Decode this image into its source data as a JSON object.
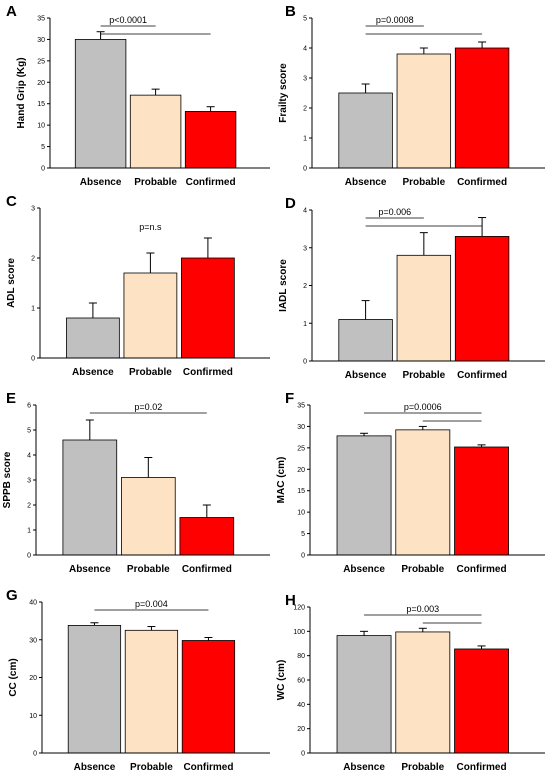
{
  "categories": [
    "Absence",
    "Probable",
    "Confirmed"
  ],
  "colors": {
    "Absence": "#c0c0c0",
    "Probable": "#fde3c4",
    "Confirmed": "#ff0000"
  },
  "chart_data": [
    {
      "type": "bar",
      "panel": "A",
      "ylabel": "Hand Grip (Kg)",
      "ylim": [
        0,
        35
      ],
      "yticks": [
        0,
        5,
        10,
        15,
        20,
        25,
        30,
        35
      ],
      "categories": [
        "Absence",
        "Probable",
        "Confirmed"
      ],
      "values": [
        30,
        17,
        13.2
      ],
      "errors": [
        1.8,
        1.4,
        1.1
      ],
      "pvalues": [
        {
          "label": "p<0.0001",
          "brackets": [
            [
              0,
              1
            ],
            [
              0,
              2
            ]
          ]
        }
      ]
    },
    {
      "type": "bar",
      "panel": "B",
      "ylabel": "Frailty score",
      "ylim": [
        0,
        5
      ],
      "yticks": [
        0,
        1,
        2,
        3,
        4,
        5
      ],
      "categories": [
        "Absence",
        "Probable",
        "Confirmed"
      ],
      "values": [
        2.5,
        3.8,
        4.0
      ],
      "errors": [
        0.3,
        0.2,
        0.2
      ],
      "pvalues": [
        {
          "label": "p=0.0008",
          "brackets": [
            [
              0,
              1
            ],
            [
              0,
              2
            ]
          ]
        }
      ]
    },
    {
      "type": "bar",
      "panel": "C",
      "ylabel": "ADL score",
      "ylim": [
        0,
        3
      ],
      "yticks": [
        0,
        1,
        2,
        3
      ],
      "categories": [
        "Absence",
        "Probable",
        "Confirmed"
      ],
      "values": [
        0.8,
        1.7,
        2.0
      ],
      "errors": [
        0.3,
        0.4,
        0.4
      ],
      "pvalues": [
        {
          "label": "p=n.s",
          "brackets": []
        }
      ]
    },
    {
      "type": "bar",
      "panel": "D",
      "ylabel": "IADL score",
      "ylim": [
        0,
        4
      ],
      "yticks": [
        0,
        1,
        2,
        3,
        4
      ],
      "categories": [
        "Absence",
        "Probable",
        "Confirmed"
      ],
      "values": [
        1.1,
        2.8,
        3.3
      ],
      "errors": [
        0.5,
        0.6,
        0.5
      ],
      "pvalues": [
        {
          "label": "p=0.006",
          "brackets": [
            [
              0,
              1
            ],
            [
              0,
              2
            ]
          ]
        }
      ]
    },
    {
      "type": "bar",
      "panel": "E",
      "ylabel": "SPPB score",
      "ylim": [
        0,
        6
      ],
      "yticks": [
        0,
        1,
        2,
        3,
        4,
        5,
        6
      ],
      "categories": [
        "Absence",
        "Probable",
        "Confirmed"
      ],
      "values": [
        4.6,
        3.1,
        1.5
      ],
      "errors": [
        0.8,
        0.8,
        0.5
      ],
      "pvalues": [
        {
          "label": "p=0.02",
          "brackets": [
            [
              0,
              2
            ]
          ]
        }
      ]
    },
    {
      "type": "bar",
      "panel": "F",
      "ylabel": "MAC (cm)",
      "ylim": [
        0,
        35
      ],
      "yticks": [
        0,
        5,
        10,
        15,
        20,
        25,
        30,
        35
      ],
      "categories": [
        "Absence",
        "Probable",
        "Confirmed"
      ],
      "values": [
        27.8,
        29.2,
        25.2
      ],
      "errors": [
        0.6,
        0.8,
        0.5
      ],
      "pvalues": [
        {
          "label": "p=0.0006",
          "brackets": [
            [
              0,
              2
            ],
            [
              1,
              2
            ]
          ]
        }
      ]
    },
    {
      "type": "bar",
      "panel": "G",
      "ylabel": "CC (cm)",
      "ylim": [
        0,
        40
      ],
      "yticks": [
        0,
        10,
        20,
        30,
        40
      ],
      "categories": [
        "Absence",
        "Probable",
        "Confirmed"
      ],
      "values": [
        33.8,
        32.5,
        29.8
      ],
      "errors": [
        0.7,
        1.0,
        0.8
      ],
      "pvalues": [
        {
          "label": "p=0.004",
          "brackets": [
            [
              0,
              2
            ]
          ]
        }
      ]
    },
    {
      "type": "bar",
      "panel": "H",
      "ylabel": "WC (cm)",
      "ylim": [
        0,
        120
      ],
      "yticks": [
        0,
        20,
        40,
        60,
        80,
        100,
        120
      ],
      "categories": [
        "Absence",
        "Probable",
        "Confirmed"
      ],
      "values": [
        96.5,
        99.5,
        85.5
      ],
      "errors": [
        3.5,
        3.0,
        2.5
      ],
      "pvalues": [
        {
          "label": "p=0.003",
          "brackets": [
            [
              0,
              2
            ],
            [
              1,
              2
            ]
          ]
        }
      ]
    }
  ]
}
